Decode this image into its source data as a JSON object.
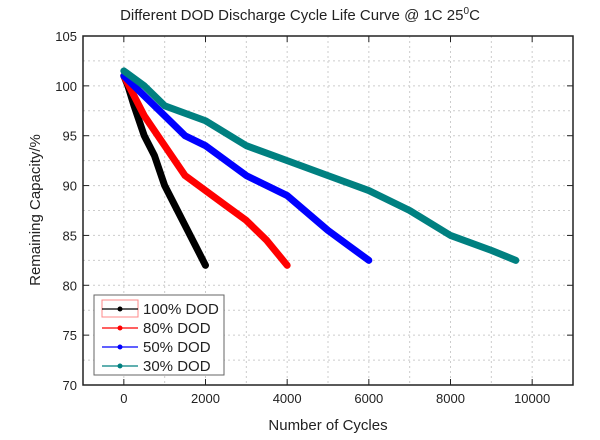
{
  "chart_data": {
    "type": "line",
    "title": "Different DOD Discharge Cycle Life Curve @ 1C 25",
    "title_superscript": "0",
    "title_suffix": "C",
    "xlabel": "Number of Cycles",
    "ylabel": "Remaining Capacity/%",
    "xlim": [
      -1000,
      11000
    ],
    "ylim": [
      70,
      105
    ],
    "xticks": [
      0,
      2000,
      4000,
      6000,
      8000,
      10000
    ],
    "yticks": [
      70,
      75,
      80,
      85,
      90,
      95,
      100,
      105
    ],
    "grid": true,
    "legend_position": "bottom-left",
    "series": [
      {
        "name": "100% DOD",
        "color": "#000000",
        "marker": "square",
        "x": [
          0,
          100,
          250,
          500,
          750,
          1000,
          1250,
          1500,
          1750,
          2000
        ],
        "y": [
          101,
          100,
          98,
          95,
          93,
          90,
          88,
          86,
          84,
          82
        ]
      },
      {
        "name": "80% DOD",
        "color": "#ff0000",
        "marker": "circle",
        "x": [
          0,
          250,
          500,
          1000,
          1500,
          2000,
          2500,
          3000,
          3500,
          4000
        ],
        "y": [
          101,
          99,
          97,
          94,
          91,
          89.5,
          88,
          86.5,
          84.5,
          82
        ]
      },
      {
        "name": "50% DOD",
        "color": "#0000ff",
        "marker": "triangle-up",
        "x": [
          0,
          500,
          1000,
          1500,
          2000,
          3000,
          4000,
          5000,
          5500,
          6000
        ],
        "y": [
          101,
          99,
          97,
          95,
          94,
          91,
          89,
          85.5,
          84,
          82.5
        ]
      },
      {
        "name": "30% DOD",
        "color": "#008080",
        "marker": "triangle-down",
        "x": [
          0,
          500,
          1000,
          2000,
          3000,
          4000,
          5000,
          6000,
          7000,
          8000,
          9000,
          9600
        ],
        "y": [
          101.5,
          100,
          98,
          96.5,
          94,
          92.5,
          91,
          89.5,
          87.5,
          85,
          83.5,
          82.5
        ]
      }
    ]
  }
}
